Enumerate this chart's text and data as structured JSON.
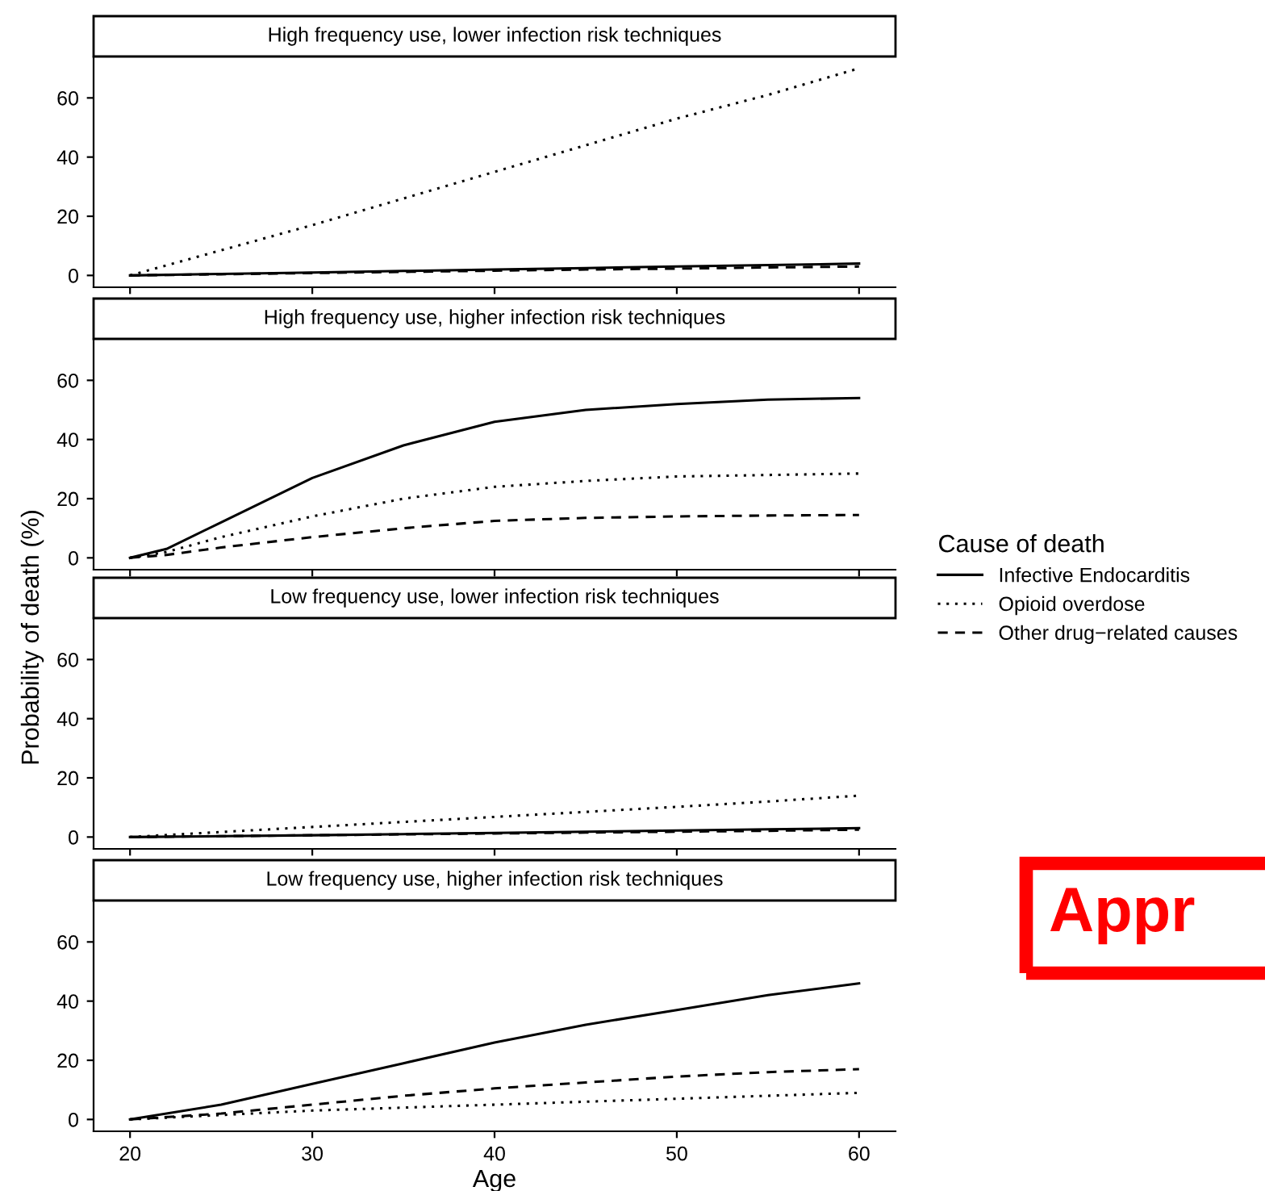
{
  "chart_data": [
    {
      "type": "line",
      "title": "High frequency use, lower infection risk techniques",
      "xlim": [
        18,
        62
      ],
      "xticks": [
        20,
        30,
        40,
        50,
        60
      ],
      "ylim": [
        -4,
        74
      ],
      "yticks": [
        0,
        20,
        40,
        60
      ],
      "tick_labels": "y",
      "legend": "right",
      "legend_title": "Cause of death",
      "series": [
        {
          "name": "Infective Endocarditis",
          "color": "#000000",
          "line_style": "solid",
          "x": [
            20,
            25,
            30,
            35,
            40,
            45,
            50,
            55,
            60
          ],
          "values": [
            0,
            0.5,
            1,
            1.5,
            2,
            2.5,
            3,
            3.5,
            4
          ]
        },
        {
          "name": "Opioid overdose",
          "color": "#000000",
          "line_style": "dotted",
          "x": [
            20,
            25,
            30,
            35,
            40,
            45,
            50,
            55,
            60
          ],
          "values": [
            0,
            8.5,
            17,
            26,
            35,
            44,
            53,
            61,
            70
          ]
        },
        {
          "name": "Other drug−related causes",
          "color": "#000000",
          "line_style": "dashed",
          "x": [
            20,
            25,
            30,
            35,
            40,
            45,
            50,
            55,
            60
          ],
          "values": [
            0,
            0.4,
            0.8,
            1.2,
            1.6,
            2,
            2.3,
            2.7,
            3
          ]
        }
      ]
    },
    {
      "type": "line",
      "title": "High frequency use, higher infection risk techniques",
      "xlim": [
        18,
        62
      ],
      "xticks": [
        20,
        30,
        40,
        50,
        60
      ],
      "ylim": [
        -4,
        74
      ],
      "yticks": [
        0,
        20,
        40,
        60
      ],
      "tick_labels": "y",
      "ylabel": "Probability of death (%)",
      "series": [
        {
          "color": "#000000",
          "line_style": "solid",
          "x": [
            20,
            22,
            25,
            30,
            35,
            40,
            45,
            50,
            55,
            60
          ],
          "values": [
            0,
            3,
            12,
            27,
            38,
            46,
            50,
            52,
            53.5,
            54
          ]
        },
        {
          "color": "#000000",
          "line_style": "dotted",
          "x": [
            20,
            22,
            25,
            30,
            35,
            40,
            45,
            50,
            55,
            60
          ],
          "values": [
            0,
            2,
            7,
            14,
            20,
            24,
            26,
            27.5,
            28,
            28.5
          ]
        },
        {
          "color": "#000000",
          "line_style": "dashed",
          "x": [
            20,
            22,
            25,
            30,
            35,
            40,
            45,
            50,
            55,
            60
          ],
          "values": [
            0,
            1,
            3.5,
            7,
            10,
            12.5,
            13.5,
            14,
            14.3,
            14.5
          ]
        }
      ]
    },
    {
      "type": "line",
      "title": "Low frequency use, lower infection risk techniques",
      "xlim": [
        18,
        62
      ],
      "xticks": [
        20,
        30,
        40,
        50,
        60
      ],
      "ylim": [
        -4,
        74
      ],
      "yticks": [
        0,
        20,
        40,
        60
      ],
      "tick_labels": "y",
      "series": [
        {
          "color": "#000000",
          "line_style": "solid",
          "x": [
            20,
            25,
            30,
            35,
            40,
            45,
            50,
            55,
            60
          ],
          "values": [
            0,
            0.3,
            0.6,
            1,
            1.4,
            1.8,
            2.2,
            2.6,
            3
          ]
        },
        {
          "color": "#000000",
          "line_style": "dotted",
          "x": [
            20,
            25,
            30,
            35,
            40,
            45,
            50,
            55,
            60
          ],
          "values": [
            0,
            1.7,
            3.4,
            5.1,
            6.8,
            8.5,
            10.2,
            12,
            14
          ]
        },
        {
          "color": "#000000",
          "line_style": "dashed",
          "x": [
            20,
            25,
            30,
            35,
            40,
            45,
            50,
            55,
            60
          ],
          "values": [
            0,
            0.3,
            0.6,
            0.9,
            1.2,
            1.5,
            1.8,
            2.1,
            2.5
          ]
        }
      ]
    },
    {
      "type": "line",
      "title": "Low frequency use, higher infection risk techniques",
      "xlim": [
        18,
        62
      ],
      "xticks": [
        20,
        30,
        40,
        50,
        60
      ],
      "ylim": [
        -4,
        74
      ],
      "yticks": [
        0,
        20,
        40,
        60
      ],
      "xlabel": "Age",
      "annotations": [
        "Appr"
      ],
      "series": [
        {
          "color": "#000000",
          "line_style": "solid",
          "x": [
            20,
            25,
            30,
            35,
            40,
            45,
            50,
            55,
            60
          ],
          "values": [
            0,
            5,
            12,
            19,
            26,
            32,
            37,
            42,
            46
          ]
        },
        {
          "color": "#000000",
          "line_style": "dotted",
          "x": [
            20,
            25,
            30,
            35,
            40,
            45,
            50,
            55,
            60
          ],
          "values": [
            0,
            1.5,
            3,
            4,
            5,
            6,
            7,
            8,
            9
          ]
        },
        {
          "color": "#000000",
          "line_style": "dashed",
          "x": [
            20,
            25,
            30,
            35,
            40,
            45,
            50,
            55,
            60
          ],
          "values": [
            0,
            2,
            5,
            8,
            10.5,
            12.5,
            14.5,
            16,
            17
          ]
        }
      ]
    }
  ]
}
